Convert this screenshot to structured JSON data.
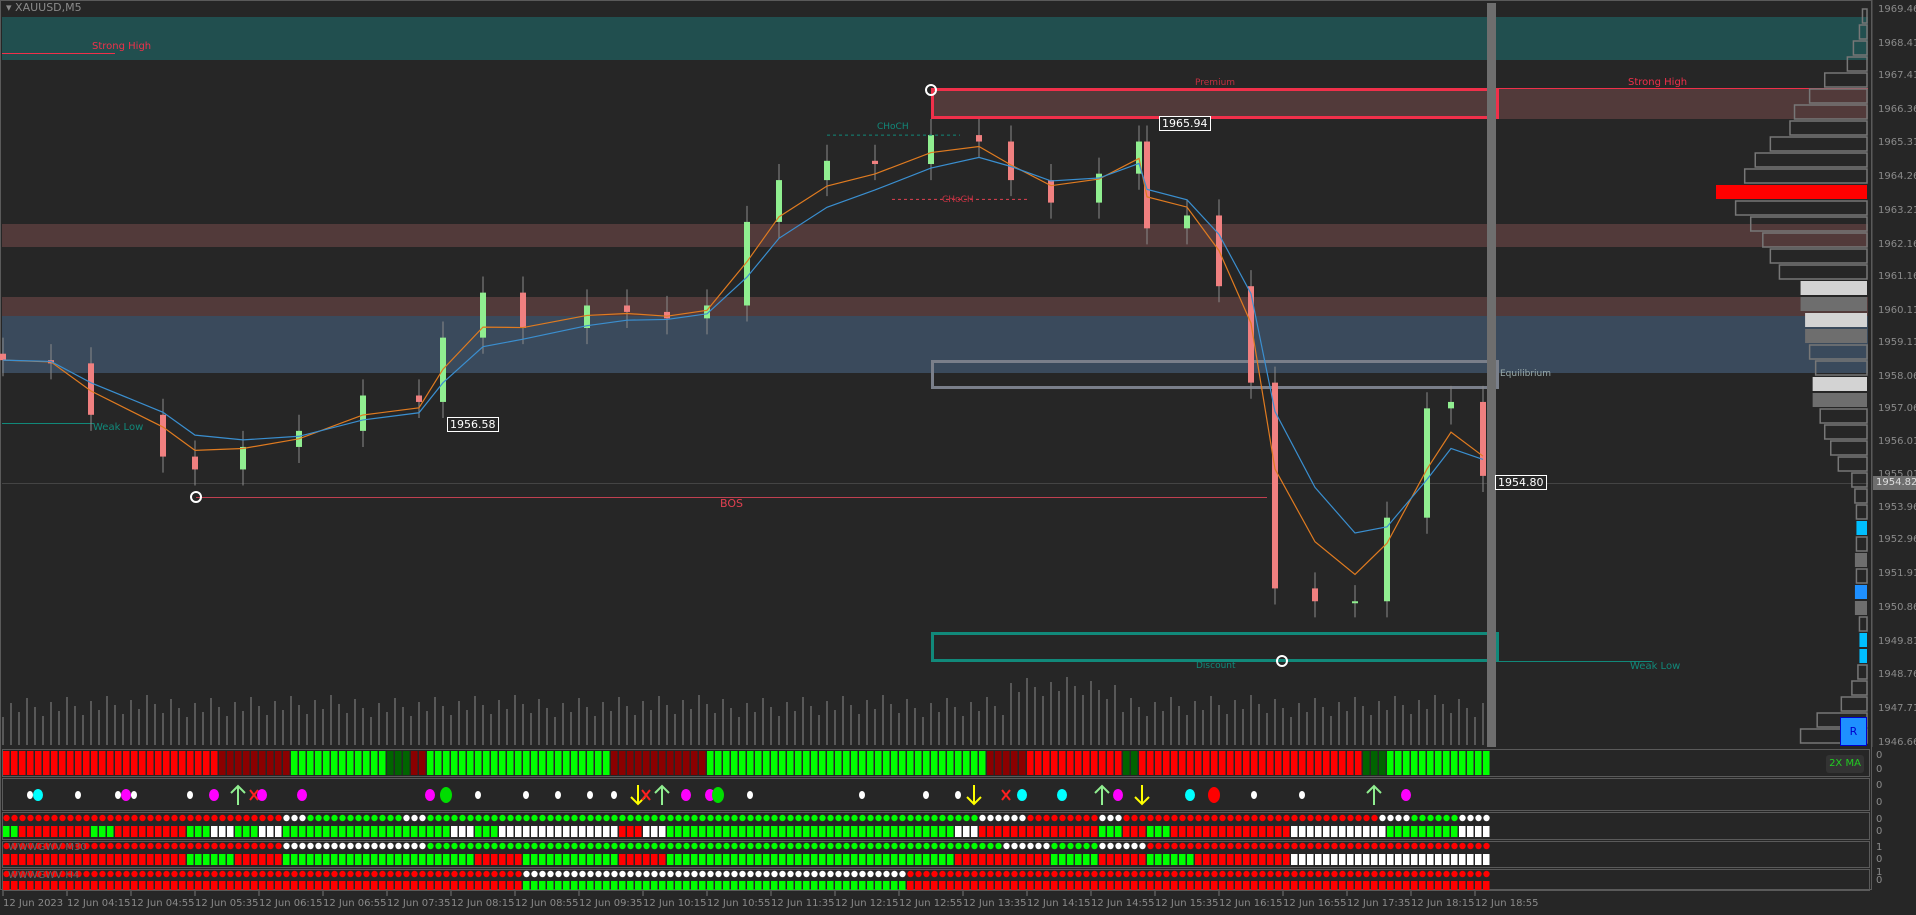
{
  "window": {
    "title": "XAUUSD,M5"
  },
  "colors": {
    "bull": "#90ee90",
    "bear": "#f08080",
    "strong_high_band": "#214f4f",
    "premium": "#523a3a",
    "equilibrium_band": "#3a4a5c",
    "discount": "#11897a",
    "bos": "#e04050"
  },
  "annotations": {
    "strong_high_left": "Strong High",
    "strong_high_right": "Strong High",
    "weak_low_left": "Weak Low",
    "weak_low_right": "Weak Low",
    "premium": "Premium",
    "equilibrium": "Equilibrium",
    "discount": "Discount",
    "bos": "BOS",
    "choch_green": "CHoCH",
    "choch_red": "CHoCH",
    "price_tag_high": "1965.94",
    "price_tag_mid": "1956.58",
    "price_tag_last": "1954.80"
  },
  "chart_data": {
    "type": "candlestick",
    "symbol": "XAUUSD",
    "timeframe": "M5",
    "ylim": [
      1946.66,
      1969.46
    ],
    "y_ticks": [
      "1969.46",
      "1968.41",
      "1967.41",
      "1966.36",
      "1965.31",
      "1964.26",
      "1963.21",
      "1962.16",
      "1961.16",
      "1960.11",
      "1959.11",
      "1958.06",
      "1957.06",
      "1956.01",
      "1955.01",
      "1953.96",
      "1952.96",
      "1951.91",
      "1950.86",
      "1949.81",
      "1948.76",
      "1947.71",
      "1946.66"
    ],
    "current_price": "1954.82",
    "x_ticks": [
      "12 Jun 2023",
      "12 Jun 04:15",
      "12 Jun 04:55",
      "12 Jun 05:35",
      "12 Jun 06:15",
      "12 Jun 06:55",
      "12 Jun 07:35",
      "12 Jun 08:15",
      "12 Jun 08:55",
      "12 Jun 09:35",
      "12 Jun 10:15",
      "12 Jun 10:55",
      "12 Jun 11:35",
      "12 Jun 12:15",
      "12 Jun 12:55",
      "12 Jun 13:35",
      "12 Jun 14:15",
      "12 Jun 14:55",
      "12 Jun 15:35",
      "12 Jun 16:15",
      "12 Jun 16:55",
      "12 Jun 17:35",
      "12 Jun 18:15",
      "12 Jun 18:55"
    ],
    "x": [
      "03:35",
      "04:05",
      "04:30",
      "05:15",
      "05:35",
      "06:05",
      "06:40",
      "07:20",
      "07:55",
      "08:10",
      "08:35",
      "09:00",
      "09:40",
      "10:05",
      "10:30",
      "10:55",
      "11:20",
      "11:40",
      "12:10",
      "12:40",
      "13:15",
      "13:45",
      "14:05",
      "14:30",
      "15:00",
      "15:25",
      "15:30",
      "15:55",
      "16:15",
      "16:35",
      "16:50",
      "17:15",
      "17:40",
      "18:00",
      "18:25",
      "18:40",
      "19:00"
    ],
    "close": [
      1958.6,
      1958.5,
      1956.9,
      1955.6,
      1955.2,
      1955.9,
      1956.4,
      1957.5,
      1957.3,
      1959.3,
      1960.7,
      1959.6,
      1960.3,
      1960.1,
      1959.9,
      1960.3,
      1962.9,
      1964.2,
      1964.8,
      1964.7,
      1965.6,
      1965.4,
      1964.2,
      1963.5,
      1964.4,
      1965.4,
      1962.7,
      1963.1,
      1960.9,
      1957.9,
      1951.5,
      1951.1,
      1951.1,
      1953.7,
      1957.1,
      1957.3,
      1955.0
    ],
    "zones": {
      "strong_high": [
        1967.9,
        1969.0
      ],
      "premium": [
        1966.0,
        1966.8
      ],
      "supply_1": [
        1962.0,
        1962.7
      ],
      "supply_2": [
        1959.8,
        1960.4
      ],
      "equilibrium_band": [
        1958.0,
        1959.8
      ],
      "equilibrium_box": [
        1957.9,
        1958.8
      ],
      "discount": [
        1949.3,
        1950.2
      ],
      "bos_level": 1954.4,
      "weak_low_left": 1956.5,
      "choch_green_level": 1965.6,
      "choch_red_level": 1963.6
    },
    "volume_profile": [
      {
        "w": 0.03,
        "fill": "none"
      },
      {
        "w": 0.05,
        "fill": "none"
      },
      {
        "w": 0.09,
        "fill": "none"
      },
      {
        "w": 0.13,
        "fill": "none"
      },
      {
        "w": 0.28,
        "fill": "none"
      },
      {
        "w": 0.38,
        "fill": "none"
      },
      {
        "w": 0.48,
        "fill": "none"
      },
      {
        "w": 0.51,
        "fill": "none"
      },
      {
        "w": 0.64,
        "fill": "none"
      },
      {
        "w": 0.74,
        "fill": "none"
      },
      {
        "w": 0.81,
        "fill": "none"
      },
      {
        "w": 1.0,
        "fill": "#ff0000"
      },
      {
        "w": 0.87,
        "fill": "none"
      },
      {
        "w": 0.77,
        "fill": "none"
      },
      {
        "w": 0.69,
        "fill": "none"
      },
      {
        "w": 0.64,
        "fill": "none"
      },
      {
        "w": 0.58,
        "fill": "none"
      },
      {
        "w": 0.44,
        "fill": "#d3d3d3"
      },
      {
        "w": 0.44,
        "fill": "#6e6e6e"
      },
      {
        "w": 0.41,
        "fill": "#d3d3d3"
      },
      {
        "w": 0.41,
        "fill": "#6e6e6e"
      },
      {
        "w": 0.38,
        "fill": "none"
      },
      {
        "w": 0.34,
        "fill": "none"
      },
      {
        "w": 0.36,
        "fill": "#d3d3d3"
      },
      {
        "w": 0.36,
        "fill": "#6e6e6e"
      },
      {
        "w": 0.31,
        "fill": "none"
      },
      {
        "w": 0.28,
        "fill": "none"
      },
      {
        "w": 0.24,
        "fill": "none"
      },
      {
        "w": 0.19,
        "fill": "none"
      },
      {
        "w": 0.1,
        "fill": "none"
      },
      {
        "w": 0.08,
        "fill": "none"
      },
      {
        "w": 0.07,
        "fill": "none"
      },
      {
        "w": 0.07,
        "fill": "#00bfff"
      },
      {
        "w": 0.07,
        "fill": "none"
      },
      {
        "w": 0.08,
        "fill": "#6e6e6e"
      },
      {
        "w": 0.07,
        "fill": "none"
      },
      {
        "w": 0.08,
        "fill": "#1e90ff"
      },
      {
        "w": 0.08,
        "fill": "#6e6e6e"
      },
      {
        "w": 0.05,
        "fill": "none"
      },
      {
        "w": 0.05,
        "fill": "#00bfff"
      },
      {
        "w": 0.05,
        "fill": "#00bfff"
      },
      {
        "w": 0.06,
        "fill": "none"
      },
      {
        "w": 0.1,
        "fill": "none"
      },
      {
        "w": 0.17,
        "fill": "none"
      },
      {
        "w": 0.33,
        "fill": "none"
      },
      {
        "w": 0.44,
        "fill": "none"
      }
    ]
  },
  "buttons": {
    "r_label": "R"
  },
  "panels": {
    "ma": {
      "label": "2X MA",
      "scale": [
        "0",
        "0"
      ],
      "segments": [
        [
          "#ff0000",
          27
        ],
        [
          "#8b0000",
          9
        ],
        [
          "#00ff00",
          12
        ],
        [
          "#006400",
          3
        ],
        [
          "#8b0000",
          2
        ],
        [
          "#00ff00",
          23
        ],
        [
          "#8b0000",
          12
        ],
        [
          "#00ff00",
          35
        ],
        [
          "#8b0000",
          5
        ],
        [
          "#ff0000",
          12
        ],
        [
          "#006400",
          2
        ],
        [
          "#ff0000",
          28
        ],
        [
          "#006400",
          3
        ],
        [
          "#00ff00",
          13
        ]
      ]
    },
    "signals": {
      "scale": [
        "0",
        "0"
      ],
      "markers": [
        [
          3,
          "white-dot"
        ],
        [
          4,
          "cyan-dot"
        ],
        [
          9,
          "white-dot"
        ],
        [
          14,
          "white-dot"
        ],
        [
          15,
          "magenta-dot"
        ],
        [
          16,
          "white-dot"
        ],
        [
          23,
          "white-dot"
        ],
        [
          26,
          "magenta-dot"
        ],
        [
          29,
          "up-arrow"
        ],
        [
          31,
          "red-x"
        ],
        [
          32,
          "magenta-dot"
        ],
        [
          37,
          "magenta-dot"
        ],
        [
          53,
          "magenta-dot"
        ],
        [
          55,
          "green-dot"
        ],
        [
          59,
          "white-dot"
        ],
        [
          65,
          "white-dot"
        ],
        [
          69,
          "white-dot"
        ],
        [
          73,
          "white-dot"
        ],
        [
          76,
          "white-dot"
        ],
        [
          79,
          "down-arrow"
        ],
        [
          80,
          "red-x"
        ],
        [
          82,
          "up-arrow"
        ],
        [
          85,
          "magenta-dot"
        ],
        [
          88,
          "magenta-dot"
        ],
        [
          89,
          "green-dot"
        ],
        [
          93,
          "white-dot"
        ],
        [
          107,
          "white-dot"
        ],
        [
          115,
          "white-dot"
        ],
        [
          119,
          "white-dot"
        ],
        [
          121,
          "down-arrow"
        ],
        [
          125,
          "red-x"
        ],
        [
          127,
          "cyan-dot"
        ],
        [
          132,
          "cyan-dot"
        ],
        [
          137,
          "up-arrow"
        ],
        [
          139,
          "magenta-dot"
        ],
        [
          142,
          "down-arrow"
        ],
        [
          148,
          "cyan-dot"
        ],
        [
          151,
          "red-dot"
        ],
        [
          156,
          "white-dot"
        ],
        [
          162,
          "white-dot"
        ],
        [
          171,
          "up-arrow"
        ],
        [
          175,
          "magenta-dot"
        ]
      ]
    },
    "trend_1": {
      "label": "",
      "scale": [
        "0",
        "0"
      ],
      "dots": [
        [
          "#ff0000",
          35
        ],
        [
          "#ffffff",
          3
        ],
        [
          "#00ff00",
          12
        ],
        [
          "#ffffff",
          3
        ],
        [
          "#00ff00",
          69
        ],
        [
          "#ffffff",
          6
        ],
        [
          "#ff0000",
          9
        ],
        [
          "#ffffff",
          3
        ],
        [
          "#ff0000",
          32
        ],
        [
          "#ffffff",
          4
        ],
        [
          "#00ff00",
          6
        ],
        [
          "#ffffff",
          4
        ]
      ],
      "bars": [
        [
          "#00ff00",
          2
        ],
        [
          "#ff0000",
          9
        ],
        [
          "#00ff00",
          3
        ],
        [
          "#ff0000",
          9
        ],
        [
          "#00ff00",
          3
        ],
        [
          "#ffffff",
          3
        ],
        [
          "#00ff00",
          3
        ],
        [
          "#ffffff",
          3
        ],
        [
          "#00ff00",
          21
        ],
        [
          "#ffffff",
          3
        ],
        [
          "#00ff00",
          3
        ],
        [
          "#ffffff",
          15
        ],
        [
          "#ff0000",
          3
        ],
        [
          "#ffffff",
          3
        ],
        [
          "#00ff00",
          36
        ],
        [
          "#ffffff",
          3
        ],
        [
          "#ff0000",
          15
        ],
        [
          "#00ff00",
          3
        ],
        [
          "#ff0000",
          3
        ],
        [
          "#00ff00",
          3
        ],
        [
          "#ff0000",
          15
        ],
        [
          "#ffffff",
          12
        ],
        [
          "#00ff00",
          9
        ],
        [
          "#ffffff",
          4
        ]
      ]
    },
    "trend_m30": {
      "label": "WWWGWV M30",
      "scale": [
        "1",
        "0"
      ],
      "dots": [
        [
          "#ff0000",
          35
        ],
        [
          "#ffffff",
          18
        ],
        [
          "#00ff00",
          72
        ],
        [
          "#ffffff",
          6
        ],
        [
          "#00ff00",
          6
        ],
        [
          "#ffffff",
          6
        ],
        [
          "#ff0000",
          43
        ]
      ],
      "bars": [
        [
          "#ff0000",
          23
        ],
        [
          "#00ff00",
          6
        ],
        [
          "#ff0000",
          6
        ],
        [
          "#00ff00",
          24
        ],
        [
          "#ff0000",
          6
        ],
        [
          "#00ff00",
          12
        ],
        [
          "#ff0000",
          6
        ],
        [
          "#00ff00",
          36
        ],
        [
          "#ff0000",
          12
        ],
        [
          "#00ff00",
          6
        ],
        [
          "#ff0000",
          6
        ],
        [
          "#00ff00",
          6
        ],
        [
          "#ff0000",
          12
        ],
        [
          "#ffffff",
          25
        ]
      ]
    },
    "trend_h4": {
      "label": "WWWGWV H4",
      "scale": [
        "1",
        "0"
      ],
      "dots": [
        [
          "#ff0000",
          65
        ],
        [
          "#ffffff",
          48
        ],
        [
          "#ff0000",
          73
        ]
      ],
      "bars": [
        [
          "#ff0000",
          65
        ],
        [
          "#00ff00",
          48
        ],
        [
          "#ff0000",
          73
        ]
      ]
    }
  }
}
